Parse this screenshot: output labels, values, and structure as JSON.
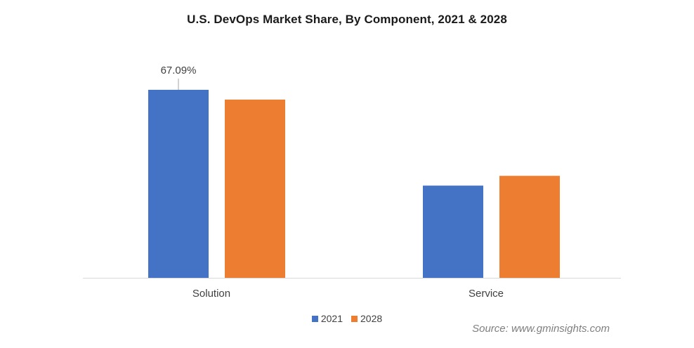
{
  "colors": {
    "series_2021": "#4472c4",
    "series_2028": "#ed7d31",
    "axis": "#d9d9d9",
    "text": "#404040"
  },
  "chart_data": {
    "type": "bar",
    "title": "U.S. DevOps Market Share, By Component, 2021 & 2028",
    "categories": [
      "Solution",
      "Service"
    ],
    "series": [
      {
        "name": "2021",
        "values": [
          67.09,
          32.91
        ]
      },
      {
        "name": "2028",
        "values": [
          63.6,
          36.4
        ]
      }
    ],
    "data_labels": [
      {
        "series": 0,
        "category": 0,
        "text": "67.09%"
      }
    ],
    "xlabel": "",
    "ylabel": "",
    "ylim": [
      0,
      76.1
    ],
    "grid": false,
    "legend_position": "bottom"
  },
  "source": "Source: www.gminsights.com"
}
